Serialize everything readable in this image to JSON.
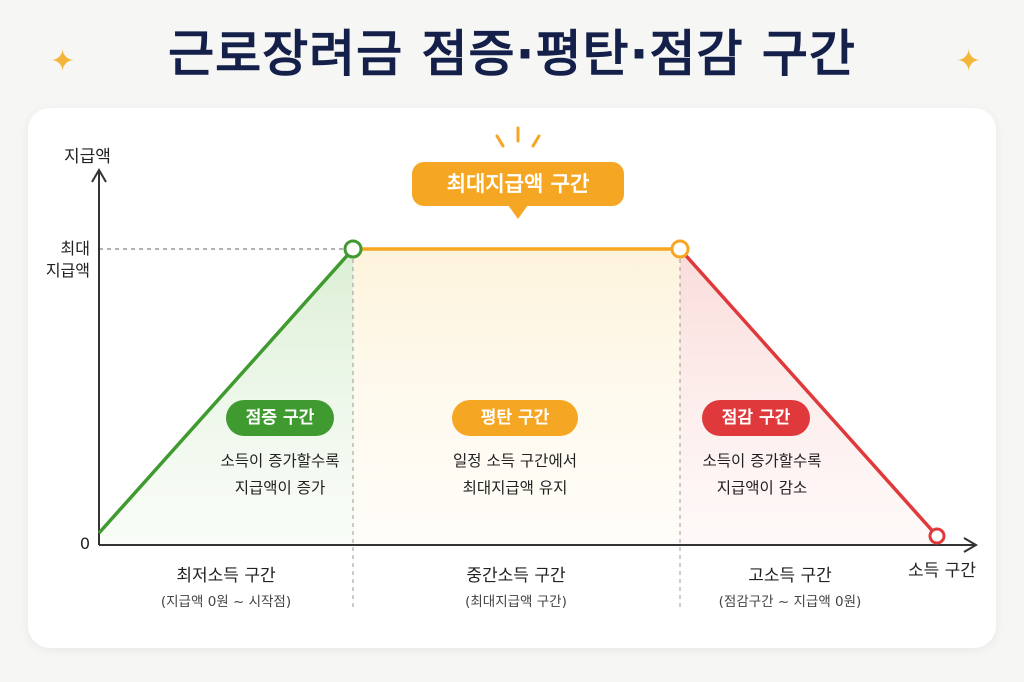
{
  "title": "근로장려금 점증·평탄·점감 구간",
  "colors": {
    "increase": "#3f9a2f",
    "flat": "#f5a623",
    "decrease": "#e0393b",
    "title": "#14204a"
  },
  "axis": {
    "y_label": "지급액",
    "y_max_label_line1": "최대",
    "y_max_label_line2": "지급액",
    "y_zero_label": "0",
    "x_label": "소득 구간"
  },
  "callout": "최대지급액 구간",
  "segments": [
    {
      "badge": "점증 구간",
      "desc_line1": "소득이 증가할수록",
      "desc_line2": "지급액이 증가",
      "x_title": "최저소득 구간",
      "x_sub": "(지급액 0원 ~ 시작점)"
    },
    {
      "badge": "평탄 구간",
      "desc_line1": "일정 소득 구간에서",
      "desc_line2": "최대지급액 유지",
      "x_title": "중간소득 구간",
      "x_sub": "(최대지급액 구간)"
    },
    {
      "badge": "점감 구간",
      "desc_line1": "소득이 증가할수록",
      "desc_line2": "지급액이 감소",
      "x_title": "고소득 구간",
      "x_sub": "(점감구간 ~ 지급액 0원)"
    }
  ]
}
